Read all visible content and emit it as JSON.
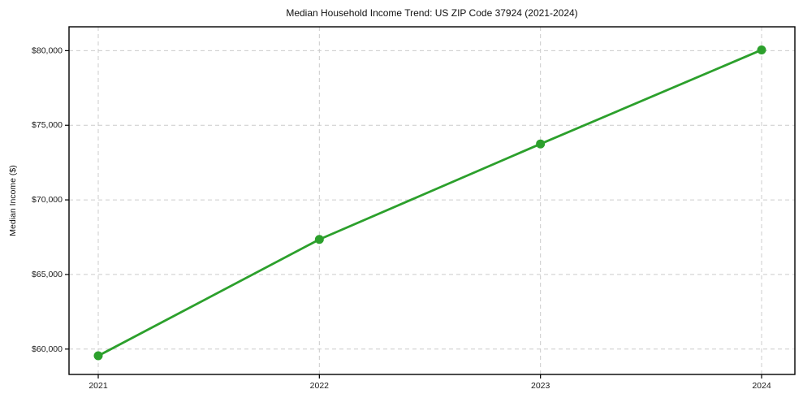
{
  "chart_data": {
    "type": "line",
    "title": "Median Household Income Trend: US ZIP Code 37924 (2021-2024)",
    "xlabel": "",
    "ylabel": "Median Income ($)",
    "categories": [
      "2021",
      "2022",
      "2023",
      "2024"
    ],
    "series": [
      {
        "name": "Median Household Income",
        "values": [
          59550,
          67350,
          73750,
          80050
        ],
        "color": "#2ca02c",
        "marker": "circle"
      }
    ],
    "yticks": [
      60000,
      65000,
      70000,
      75000,
      80000
    ],
    "ytick_labels": [
      "$60,000",
      "$65,000",
      "$70,000",
      "$75,000",
      "$80,000"
    ],
    "ylim": [
      58300,
      81600
    ],
    "grid": true,
    "grid_style": "dashed",
    "legend": "none",
    "colors": {
      "line": "#2ca02c",
      "grid": "#cccccc",
      "axis": "#000000",
      "text": "#1a1a1a",
      "background": "#ffffff"
    }
  }
}
